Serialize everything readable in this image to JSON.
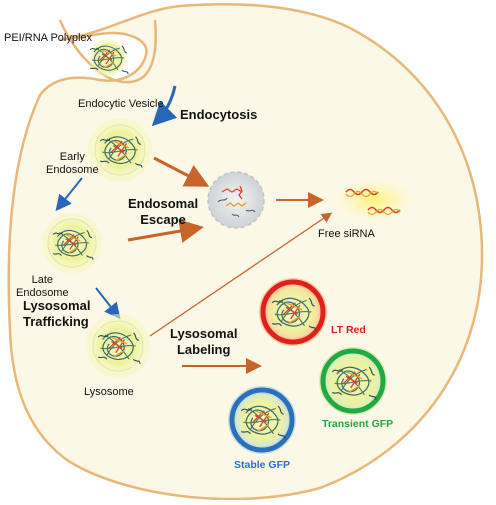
{
  "labels": {
    "polyplex": "PEI/RNA Polyplex",
    "endocytic_vesicle": "Endocytic Vesicle",
    "endocytosis": "Endocytosis",
    "early_endosome": "Early\nEndosome",
    "endosomal_escape": "Endosomal\nEscape",
    "free_sirna": "Free siRNA",
    "late_endosome": "Late\nEndosome",
    "lysosomal_trafficking": "Lysosomal\nTrafficking",
    "lysosomal_labeling": "Lysosomal\nLabeling",
    "lysosome": "Lysosome",
    "lt_red": "LT Red",
    "transient_gfp": "Transient GFP",
    "stable_gfp": "Stable GFP"
  },
  "colors": {
    "cell_fill": "#fcf8e8",
    "cell_border": "#e8b878",
    "endosome_glow": "#eef29a",
    "orange_arrow": "#c8642a",
    "blue_arrow": "#2a66b8",
    "lt_red": "#e02020",
    "transient_gfp": "#22a844",
    "stable_gfp": "#2a70c0"
  }
}
